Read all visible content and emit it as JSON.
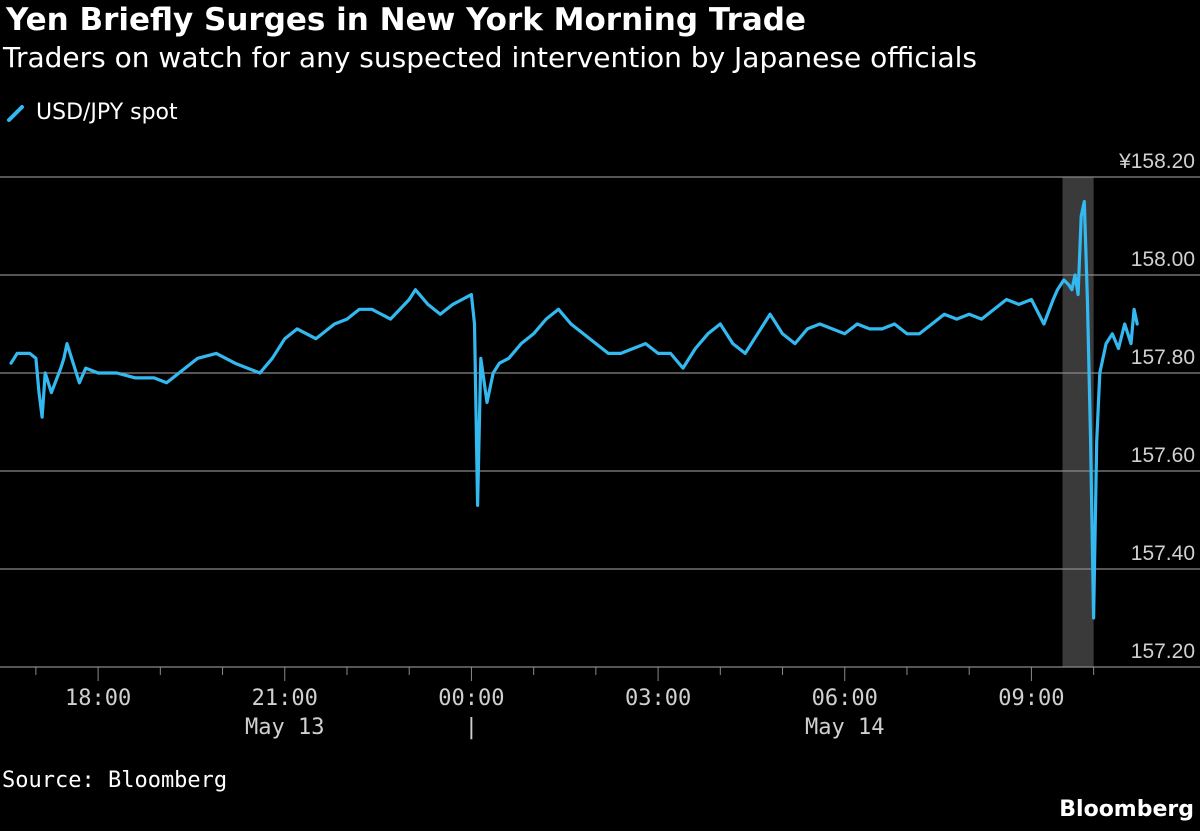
{
  "header": {
    "title": "Yen Briefly Surges in New York Morning Trade",
    "subtitle": "Traders on watch for any suspected intervention by Japanese officials"
  },
  "legend": {
    "series_label": "USD/JPY spot"
  },
  "footer": {
    "source": "Source: Bloomberg",
    "brand": "Bloomberg"
  },
  "colors": {
    "background": "#000000",
    "series": "#33b8f0",
    "grid": "#8a8a8a",
    "highlight": "#3a3a3a",
    "text": "#ffffff",
    "axis_text": "#d0d0d0"
  },
  "chart_data": {
    "type": "line",
    "title": "Yen Briefly Surges in New York Morning Trade",
    "subtitle": "Traders on watch for any suspected intervention by Japanese officials",
    "xlabel": "",
    "ylabel": "",
    "y_tick_labels": [
      "¥158.20",
      "158.00",
      "157.80",
      "157.60",
      "157.40",
      "157.20"
    ],
    "y_ticks": [
      158.2,
      158.0,
      157.8,
      157.6,
      157.4,
      157.2
    ],
    "ylim": [
      157.2,
      158.2
    ],
    "x_tick_labels": [
      "18:00",
      "21:00",
      "00:00",
      "03:00",
      "06:00",
      "09:00"
    ],
    "x_ticks": [
      18,
      21,
      24,
      27,
      30,
      33
    ],
    "date_labels": [
      {
        "label": "May 13",
        "x": 21
      },
      {
        "label": "|",
        "x": 24
      },
      {
        "label": "May 14",
        "x": 30
      }
    ],
    "xlim": [
      16.6,
      34.8
    ],
    "highlight_band": [
      33.5,
      34.0
    ],
    "grid": true,
    "legend_position": "top-left",
    "series": [
      {
        "name": "USD/JPY spot",
        "x": [
          16.6,
          16.7,
          16.9,
          17.0,
          17.05,
          17.1,
          17.15,
          17.25,
          17.4,
          17.45,
          17.5,
          17.6,
          17.7,
          17.8,
          18.0,
          18.3,
          18.6,
          18.9,
          19.1,
          19.3,
          19.6,
          19.9,
          20.2,
          20.4,
          20.6,
          20.8,
          21.0,
          21.2,
          21.5,
          21.8,
          22.0,
          22.2,
          22.4,
          22.7,
          23.0,
          23.1,
          23.3,
          23.5,
          23.7,
          23.85,
          24.0,
          24.05,
          24.1,
          24.15,
          24.25,
          24.35,
          24.45,
          24.6,
          24.8,
          25.0,
          25.2,
          25.4,
          25.6,
          25.8,
          26.0,
          26.2,
          26.4,
          26.6,
          26.8,
          27.0,
          27.2,
          27.4,
          27.6,
          27.8,
          28.0,
          28.2,
          28.4,
          28.6,
          28.8,
          29.0,
          29.2,
          29.4,
          29.6,
          29.8,
          30.0,
          30.2,
          30.4,
          30.6,
          30.8,
          31.0,
          31.2,
          31.4,
          31.6,
          31.8,
          32.0,
          32.2,
          32.4,
          32.6,
          32.8,
          33.0,
          33.2,
          33.35,
          33.42,
          33.47,
          33.52,
          33.6,
          33.65,
          33.7,
          33.75,
          33.8,
          33.85,
          33.9,
          33.95,
          34.0,
          34.05,
          34.1,
          34.2,
          34.3,
          34.4,
          34.5,
          34.6,
          34.65,
          34.7
        ],
        "values": [
          157.82,
          157.84,
          157.84,
          157.83,
          157.76,
          157.71,
          157.8,
          157.76,
          157.81,
          157.83,
          157.86,
          157.82,
          157.78,
          157.81,
          157.8,
          157.8,
          157.79,
          157.79,
          157.78,
          157.8,
          157.83,
          157.84,
          157.82,
          157.81,
          157.8,
          157.83,
          157.87,
          157.89,
          157.87,
          157.9,
          157.91,
          157.93,
          157.93,
          157.91,
          157.95,
          157.97,
          157.94,
          157.92,
          157.94,
          157.95,
          157.96,
          157.9,
          157.53,
          157.83,
          157.74,
          157.8,
          157.82,
          157.83,
          157.86,
          157.88,
          157.91,
          157.93,
          157.9,
          157.88,
          157.86,
          157.84,
          157.84,
          157.85,
          157.86,
          157.84,
          157.84,
          157.81,
          157.85,
          157.88,
          157.9,
          157.86,
          157.84,
          157.88,
          157.92,
          157.88,
          157.86,
          157.89,
          157.9,
          157.89,
          157.88,
          157.9,
          157.89,
          157.89,
          157.9,
          157.88,
          157.88,
          157.9,
          157.92,
          157.91,
          157.92,
          157.91,
          157.93,
          157.95,
          157.94,
          157.95,
          157.9,
          157.95,
          157.97,
          157.98,
          157.99,
          157.98,
          157.97,
          158.0,
          157.96,
          158.12,
          158.15,
          157.95,
          157.67,
          157.3,
          157.66,
          157.8,
          157.86,
          157.88,
          157.85,
          157.9,
          157.86,
          157.93,
          157.9
        ]
      }
    ]
  }
}
